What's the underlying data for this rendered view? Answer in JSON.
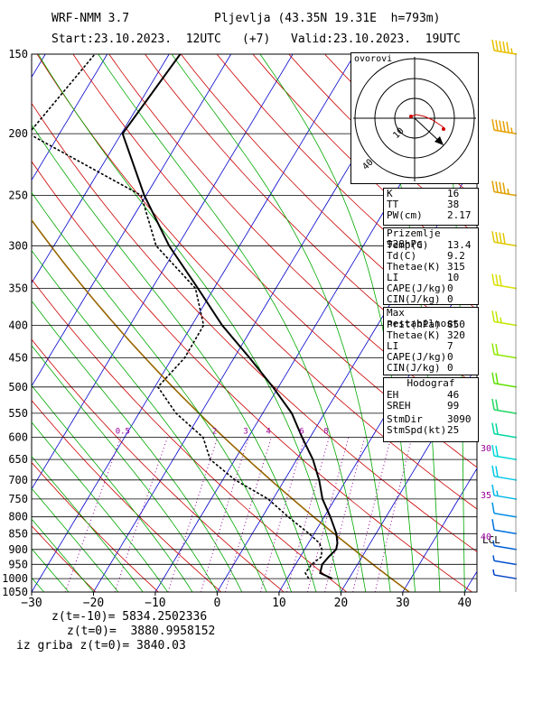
{
  "header": {
    "model": "WRF-NMM 3.7",
    "station": "Pljevlja (43.35N 19.31E  h=793m)",
    "start": "Start:23.10.2023.  12UTC",
    "offset": "(+7)",
    "valid": "Valid:23.10.2023.  19UTC"
  },
  "hodograph": {
    "title": "ovorovi",
    "ring_labels": [
      "10",
      "40"
    ]
  },
  "indices": {
    "rows": [
      {
        "label": "K",
        "value": "16"
      },
      {
        "label": "TT",
        "value": "38"
      },
      {
        "label": "PW(cm)",
        "value": "2.17"
      }
    ]
  },
  "surface": {
    "title": "Prizemlje 928hPa",
    "rows": [
      {
        "label": "Temp(C)",
        "value": "13.4"
      },
      {
        "label": "Td(C)",
        "value": "9.2"
      },
      {
        "label": "Thetae(K)",
        "value": "315"
      },
      {
        "label": "LI",
        "value": "10"
      },
      {
        "label": "CAPE(J/kg)",
        "value": "0"
      },
      {
        "label": "CIN(J/kg)",
        "value": "0"
      }
    ]
  },
  "max_instability": {
    "title": "Max nestabilnost",
    "rows": [
      {
        "label": "Prit(hPa)",
        "value": "850"
      },
      {
        "label": "Thetae(K)",
        "value": "320"
      },
      {
        "label": "LI",
        "value": "7"
      },
      {
        "label": "CAPE(J/kg)",
        "value": "0"
      },
      {
        "label": "CIN(J/kg)",
        "value": "0"
      }
    ]
  },
  "hodograf": {
    "title": "Hodograf",
    "rows": [
      {
        "label": "EH",
        "value": "46"
      },
      {
        "label": "SREH",
        "value": "99"
      },
      {
        "label": "StmDir",
        "value": "3090"
      },
      {
        "label": "StmSpd(kt)",
        "value": "25"
      }
    ]
  },
  "footer": {
    "line1": "z(t=-10)= 5834.2502336",
    "line2": "z(t=0)=  3880.9958152",
    "line3": "iz griba z(t=0)= 3840.03"
  },
  "colors": {
    "temperature": "#000000",
    "isotherm": "#0000cc",
    "dry_adiabat": "#cc0000",
    "moist_adiabat": "#00aa00",
    "mixing_ratio": "#990099",
    "dry_adiabat_thick": "#996600"
  },
  "chart_data": {
    "type": "line",
    "chart_kind": "skew-T log-p sounding",
    "x_ticks": [
      "-30",
      "-20",
      "-10",
      "0",
      "10",
      "20",
      "30",
      "40"
    ],
    "y_ticks": [
      "150",
      "200",
      "250",
      "300",
      "350",
      "400",
      "450",
      "500",
      "550",
      "600",
      "650",
      "700",
      "750",
      "800",
      "850",
      "900",
      "950",
      "1000",
      "1050"
    ],
    "xlim": [
      -30,
      42
    ],
    "ylim": [
      1050,
      150
    ],
    "yscale": "log",
    "mixing_ratio_labels": [
      "0.5",
      "2",
      "3",
      "4",
      "6",
      "8"
    ],
    "annotations": [
      "LCL",
      "30",
      "35",
      "40"
    ],
    "series": [
      {
        "key": "temperature",
        "pressure": [
          1000,
          980,
          950,
          925,
          900,
          880,
          850,
          800,
          750,
          700,
          650,
          600,
          550,
          500,
          450,
          400,
          350,
          300,
          250,
          200,
          150
        ],
        "temperature_c": [
          17.3,
          14.8,
          14.3,
          14.6,
          15.1,
          14.7,
          13.6,
          11.0,
          8.0,
          5.6,
          2.6,
          -1.3,
          -5.3,
          -10.9,
          -17.5,
          -25.1,
          -32.6,
          -41.4,
          -50.3,
          -59.8,
          -58.2
        ]
      },
      {
        "key": "dewpoint",
        "pressure": [
          1000,
          980,
          950,
          925,
          900,
          880,
          850,
          800,
          750,
          700,
          650,
          600,
          550,
          500,
          450,
          400,
          350,
          300,
          250,
          200,
          150
        ],
        "temperature_c": [
          13.5,
          12.4,
          12.6,
          13.4,
          12.8,
          11.8,
          9.2,
          4.2,
          -0.8,
          -8.0,
          -14.0,
          -17.3,
          -24.0,
          -29.5,
          -28.0,
          -28.1,
          -33.0,
          -43.5,
          -50.8,
          -75.0,
          -72.0
        ]
      }
    ],
    "wind_barbs": {
      "pressure": [
        150,
        200,
        250,
        300,
        350,
        400,
        450,
        500,
        550,
        600,
        650,
        700,
        750,
        800,
        850,
        900,
        950,
        1000
      ],
      "speed_kt": [
        55,
        55,
        45,
        40,
        30,
        25,
        20,
        20,
        20,
        20,
        20,
        20,
        15,
        10,
        10,
        5,
        5,
        5
      ]
    },
    "hodograph_curve": {
      "u": [
        0,
        2,
        5,
        8,
        10,
        12
      ],
      "v": [
        0,
        0.5,
        0,
        -1,
        -2,
        -3
      ]
    }
  }
}
